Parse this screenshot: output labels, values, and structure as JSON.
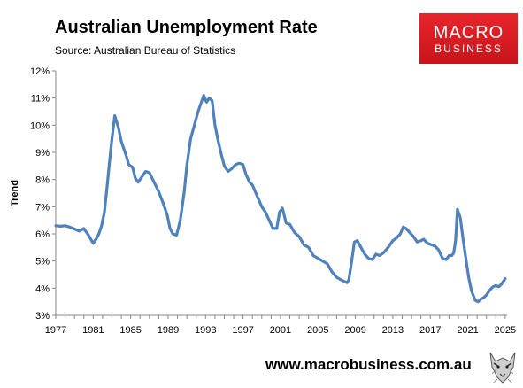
{
  "header": {
    "title": "Australian Unemployment Rate",
    "subtitle": "Source: Australian Bureau of Statistics"
  },
  "logo": {
    "line1": "MACRO",
    "line2": "BUSINESS"
  },
  "footer": {
    "website": "www.macrobusiness.com.au"
  },
  "colors": {
    "line": "#4f81bd",
    "logo_bg": "#d71920",
    "axis": "#888888"
  },
  "chart_data": {
    "type": "line",
    "title": "Australian Unemployment Rate",
    "xlabel": "",
    "ylabel": "Trend",
    "xlim": [
      1977,
      2025.2
    ],
    "ylim": [
      3,
      12
    ],
    "x_ticks": [
      1977,
      1981,
      1985,
      1989,
      1993,
      1997,
      2001,
      2005,
      2009,
      2013,
      2017,
      2021,
      2025
    ],
    "y_ticks": [
      3,
      4,
      5,
      6,
      7,
      8,
      9,
      10,
      11,
      12
    ],
    "y_tick_labels": [
      "3%",
      "4%",
      "5%",
      "6%",
      "7%",
      "8%",
      "9%",
      "10%",
      "11%",
      "12%"
    ],
    "grid": false,
    "legend": "none",
    "series": [
      {
        "x": [
          1977.0,
          1977.5,
          1978.0,
          1978.5,
          1979.0,
          1979.5,
          1980.0,
          1980.5,
          1981.0,
          1981.3,
          1981.6,
          1981.9,
          1982.2,
          1982.5,
          1982.7,
          1983.0,
          1983.3,
          1983.7,
          1984.0,
          1984.5,
          1984.8,
          1985.2,
          1985.5,
          1985.8,
          1986.2,
          1986.6,
          1987.0,
          1987.5,
          1988.0,
          1988.5,
          1988.9,
          1989.2,
          1989.5,
          1989.9,
          1990.3,
          1990.7,
          1991.0,
          1991.4,
          1991.8,
          1992.2,
          1992.5,
          1992.8,
          1993.1,
          1993.4,
          1993.7,
          1994.0,
          1994.3,
          1994.7,
          1995.0,
          1995.4,
          1995.8,
          1996.2,
          1996.6,
          1997.0,
          1997.3,
          1997.7,
          1998.0,
          1998.5,
          1999.0,
          1999.4,
          1999.8,
          2000.2,
          2000.6,
          2000.9,
          2001.2,
          2001.6,
          2002.0,
          2002.5,
          2003.0,
          2003.5,
          2004.0,
          2004.5,
          2005.0,
          2005.5,
          2006.0,
          2006.5,
          2007.0,
          2007.5,
          2007.8,
          2008.1,
          2008.3,
          2008.6,
          2008.9,
          2009.2,
          2009.6,
          2010.0,
          2010.4,
          2010.8,
          2011.2,
          2011.6,
          2012.0,
          2012.5,
          2013.0,
          2013.4,
          2013.8,
          2014.1,
          2014.4,
          2014.8,
          2015.2,
          2015.6,
          2016.0,
          2016.3,
          2016.7,
          2017.1,
          2017.5,
          2017.9,
          2018.3,
          2018.7,
          2019.0,
          2019.3,
          2019.5,
          2019.7,
          2019.9,
          2020.2,
          2020.5,
          2020.8,
          2021.1,
          2021.4,
          2021.8,
          2022.1,
          2022.4,
          2022.7,
          2023.0,
          2023.4,
          2023.7,
          2024.0,
          2024.3,
          2024.6,
          2025.0
        ],
        "y": [
          6.3,
          6.28,
          6.3,
          6.25,
          6.18,
          6.1,
          6.2,
          5.95,
          5.65,
          5.8,
          6.0,
          6.3,
          6.8,
          7.8,
          8.5,
          9.5,
          10.35,
          9.9,
          9.4,
          8.9,
          8.55,
          8.45,
          8.05,
          7.9,
          8.1,
          8.3,
          8.25,
          7.9,
          7.55,
          7.1,
          6.7,
          6.2,
          6.0,
          5.95,
          6.5,
          7.5,
          8.5,
          9.5,
          10.0,
          10.5,
          10.8,
          11.1,
          10.85,
          11.0,
          10.9,
          10.0,
          9.5,
          8.9,
          8.5,
          8.3,
          8.4,
          8.55,
          8.6,
          8.55,
          8.2,
          7.9,
          7.8,
          7.4,
          7.0,
          6.8,
          6.5,
          6.2,
          6.2,
          6.8,
          6.95,
          6.4,
          6.35,
          6.05,
          5.9,
          5.6,
          5.5,
          5.2,
          5.1,
          5.0,
          4.9,
          4.6,
          4.4,
          4.3,
          4.25,
          4.2,
          4.3,
          5.0,
          5.7,
          5.75,
          5.5,
          5.25,
          5.1,
          5.05,
          5.25,
          5.2,
          5.3,
          5.5,
          5.75,
          5.85,
          6.0,
          6.25,
          6.2,
          6.05,
          5.9,
          5.7,
          5.75,
          5.8,
          5.65,
          5.6,
          5.55,
          5.4,
          5.1,
          5.05,
          5.2,
          5.2,
          5.3,
          5.75,
          6.9,
          6.6,
          5.8,
          5.1,
          4.4,
          3.9,
          3.55,
          3.5,
          3.6,
          3.65,
          3.75,
          3.95,
          4.05,
          4.1,
          4.05,
          4.15,
          4.35
        ]
      }
    ]
  }
}
